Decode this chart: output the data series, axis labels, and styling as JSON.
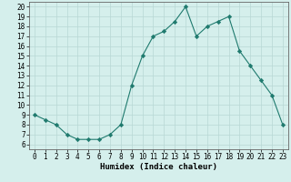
{
  "x": [
    0,
    1,
    2,
    3,
    4,
    5,
    6,
    7,
    8,
    9,
    10,
    11,
    12,
    13,
    14,
    15,
    16,
    17,
    18,
    19,
    20,
    21,
    22,
    23
  ],
  "y": [
    9,
    8.5,
    8,
    7,
    6.5,
    6.5,
    6.5,
    7,
    8,
    12,
    15,
    17,
    17.5,
    18.5,
    20,
    17,
    18,
    18.5,
    19,
    15.5,
    14,
    12.5,
    11,
    8
  ],
  "line_color": "#1f7a6e",
  "marker": "D",
  "marker_size": 2.2,
  "bg_color": "#d5efec",
  "grid_color": "#b8d8d4",
  "xlabel": "Humidex (Indice chaleur)",
  "xlim": [
    -0.5,
    23.5
  ],
  "ylim": [
    5.5,
    20.5
  ],
  "xticks": [
    0,
    1,
    2,
    3,
    4,
    5,
    6,
    7,
    8,
    9,
    10,
    11,
    12,
    13,
    14,
    15,
    16,
    17,
    18,
    19,
    20,
    21,
    22,
    23
  ],
  "yticks": [
    6,
    7,
    8,
    9,
    10,
    11,
    12,
    13,
    14,
    15,
    16,
    17,
    18,
    19,
    20
  ],
  "xlabel_fontsize": 6.5,
  "tick_fontsize": 5.5
}
